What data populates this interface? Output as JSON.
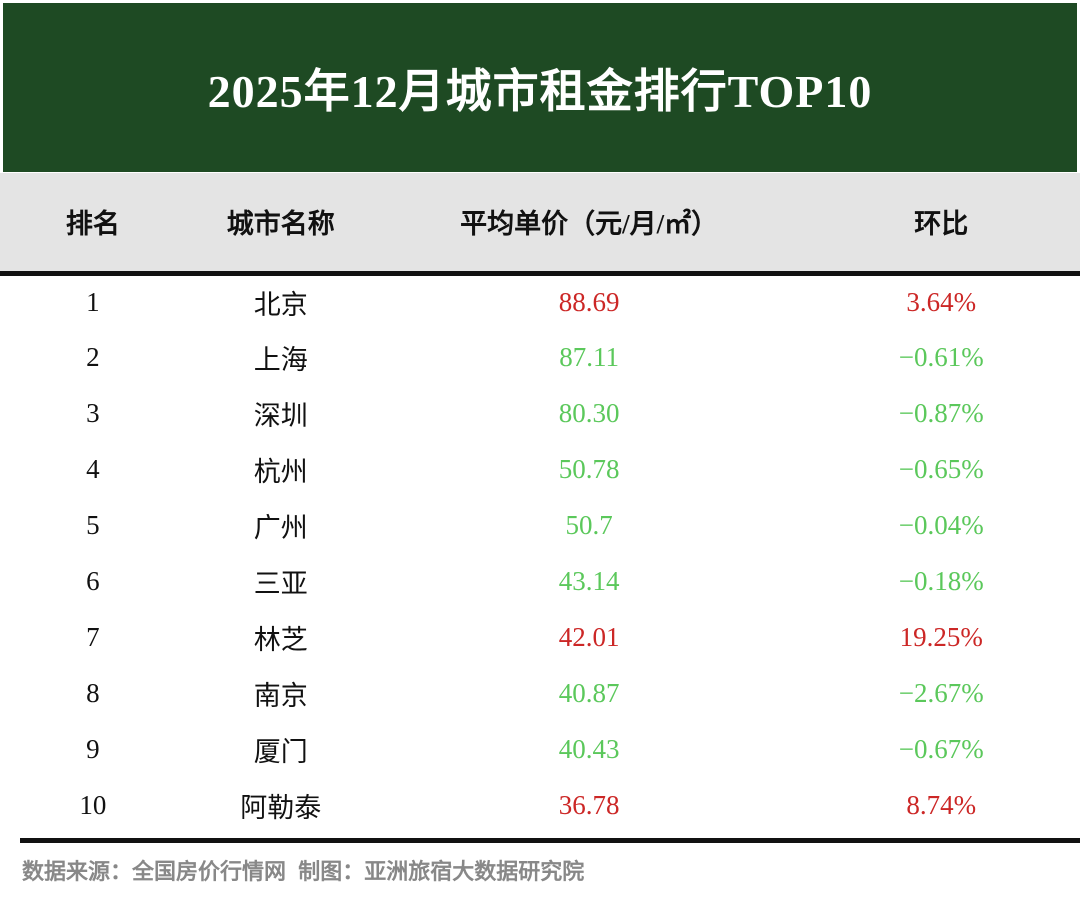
{
  "page": {
    "title": "2025年12月城市租金排行TOP10",
    "footer": "数据来源：全国房价行情网  制图：亚洲旅宿大数据研究院"
  },
  "colors": {
    "banner_green": "#1e4a23",
    "header_gray": "#e4e4e4",
    "up_red": "#cc2726",
    "down_green": "#5bc85b",
    "rule_black": "#111111",
    "footer_gray": "#888888",
    "title_white": "#ffffff"
  },
  "chart_data": {
    "type": "table",
    "title": "2025年12月城市租金排行TOP10",
    "columns": [
      "排名",
      "城市名称",
      "平均单价（元/月/㎡）",
      "环比"
    ],
    "rows": [
      {
        "rank": "1",
        "city": "北京",
        "price": "88.69",
        "change": "3.64%",
        "trend": "up"
      },
      {
        "rank": "2",
        "city": "上海",
        "price": "87.11",
        "change": "−0.61%",
        "trend": "down"
      },
      {
        "rank": "3",
        "city": "深圳",
        "price": "80.30",
        "change": "−0.87%",
        "trend": "down"
      },
      {
        "rank": "4",
        "city": "杭州",
        "price": "50.78",
        "change": "−0.65%",
        "trend": "down"
      },
      {
        "rank": "5",
        "city": "广州",
        "price": "50.7",
        "change": "−0.04%",
        "trend": "down"
      },
      {
        "rank": "6",
        "city": "三亚",
        "price": "43.14",
        "change": "−0.18%",
        "trend": "down"
      },
      {
        "rank": "7",
        "city": "林芝",
        "price": "42.01",
        "change": "19.25%",
        "trend": "up"
      },
      {
        "rank": "8",
        "city": "南京",
        "price": "40.87",
        "change": "−2.67%",
        "trend": "down"
      },
      {
        "rank": "9",
        "city": "厦门",
        "price": "40.43",
        "change": "−0.67%",
        "trend": "down"
      },
      {
        "rank": "10",
        "city": "阿勒泰",
        "price": "36.78",
        "change": "8.74%",
        "trend": "up"
      }
    ],
    "notes": {
      "source": "数据来源：全国房价行情网",
      "credit": "制图：亚洲旅宿大数据研究院"
    },
    "legend_semantics": {
      "up_color_meaning": "环比上涨（红色）",
      "down_color_meaning": "环比下跌（绿色）"
    }
  }
}
